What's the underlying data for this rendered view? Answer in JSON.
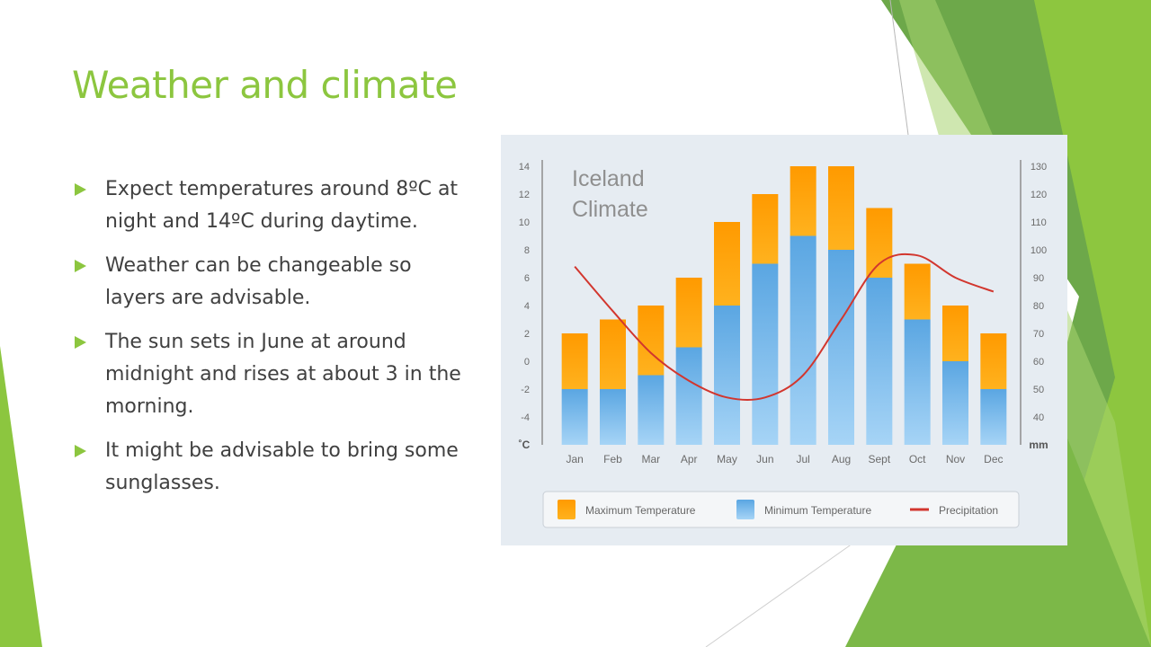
{
  "slide": {
    "title": "Weather and climate",
    "bullets": [
      "Expect temperatures around 8ºC at night and 14ºC during daytime.",
      "Weather can be changeable so layers are advisable.",
      "The sun sets in June at around midnight and rises at about 3 in the morning.",
      "It might be advisable to bring some sunglasses."
    ]
  },
  "colors": {
    "accent": "#8cc63f",
    "max_temp": "#ffa20a",
    "min_temp": "#6cb2e6",
    "precipitation": "#d2362e",
    "chart_bg": "#e6ecf2"
  },
  "chart_data": {
    "type": "bar",
    "title_lines": [
      "Iceland",
      "Climate"
    ],
    "categories": [
      "Jan",
      "Feb",
      "Mar",
      "Apr",
      "May",
      "Jun",
      "Jul",
      "Aug",
      "Sept",
      "Oct",
      "Nov",
      "Dec"
    ],
    "series": [
      {
        "name": "Maximum Temperature",
        "values": [
          2,
          3,
          4,
          6,
          10,
          12,
          14,
          14,
          11,
          7,
          4,
          2
        ]
      },
      {
        "name": "Minimum Temperature",
        "values": [
          -2,
          -2,
          -1,
          1,
          4,
          7,
          9,
          8,
          6,
          3,
          0,
          -2
        ]
      },
      {
        "name": "Precipitation",
        "axis": "right",
        "values": [
          94,
          78,
          63,
          53,
          47,
          47,
          55,
          75,
          95,
          98,
          90,
          85
        ]
      }
    ],
    "y_left": {
      "unit": "˚C",
      "ticks": [
        14,
        12,
        10,
        8,
        6,
        4,
        2,
        0,
        -2,
        -4
      ],
      "range": [
        -6,
        14
      ]
    },
    "y_right": {
      "unit": "mm",
      "ticks": [
        130,
        120,
        110,
        100,
        90,
        80,
        70,
        60,
        50,
        40
      ],
      "range": [
        30,
        130
      ]
    },
    "grid": false,
    "legend_position": "bottom"
  }
}
